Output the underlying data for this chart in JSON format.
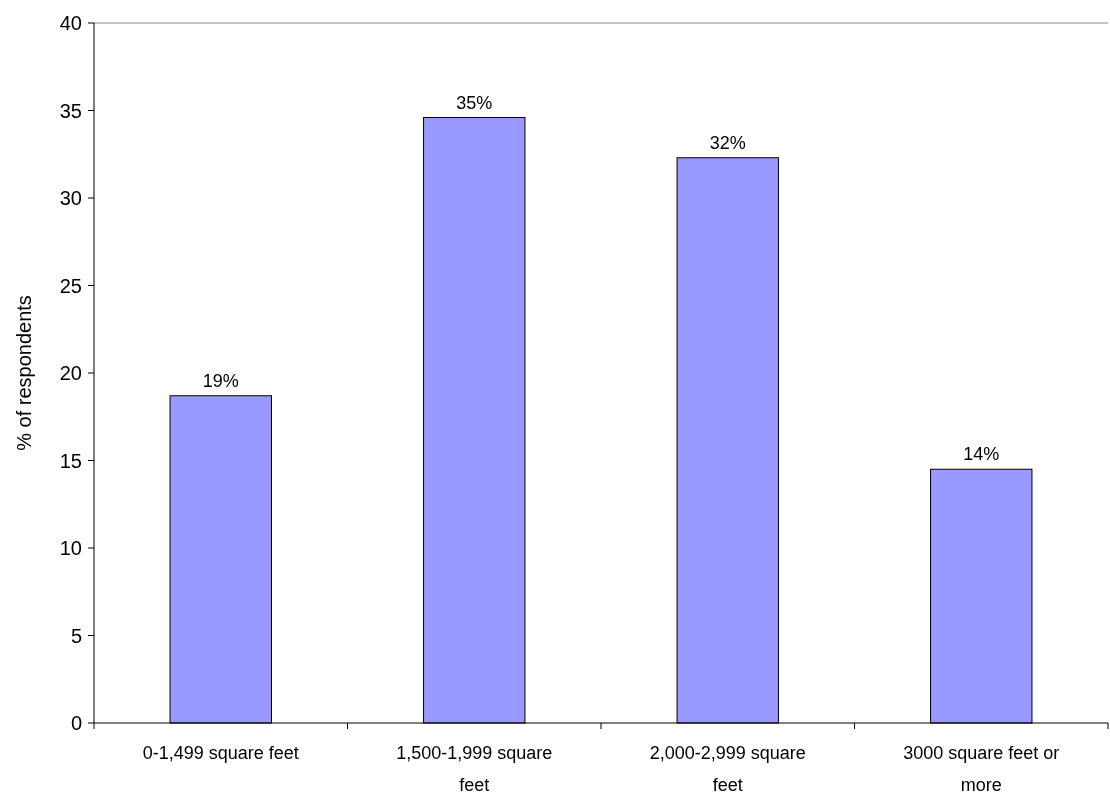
{
  "chart_data": {
    "type": "bar",
    "ylabel": "% of respondents",
    "categories": [
      "0-1,499 square feet",
      "1,500-1,999 square feet",
      "2,000-2,999 square feet",
      "3000 square feet or more"
    ],
    "values": [
      18.7,
      34.6,
      32.3,
      14.5
    ],
    "value_labels": [
      "19%",
      "35%",
      "32%",
      "14%"
    ],
    "color": "#9999ff",
    "ylim": [
      0,
      40
    ],
    "yticks": [
      0,
      5,
      10,
      15,
      20,
      25,
      30,
      35,
      40
    ],
    "grid": false
  }
}
